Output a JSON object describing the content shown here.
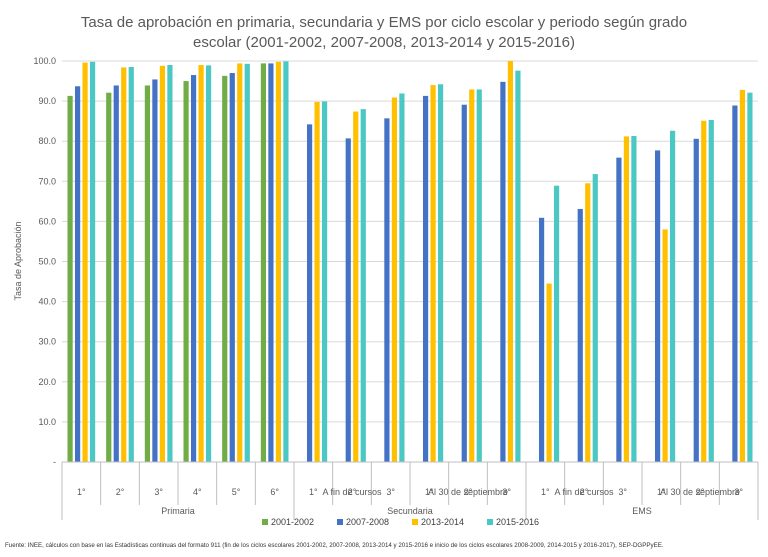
{
  "colors": {
    "series": [
      "#70AD47",
      "#4472C4",
      "#FFC000",
      "#4BC8C4"
    ],
    "grid": "#d9d9d9",
    "axis": "#bfbfbf",
    "text": "#595959"
  },
  "chart_data": {
    "type": "bar",
    "title_line1": "Tasa de aprobación en primaria, secundaria y EMS por ciclo escolar y periodo según grado",
    "title_line2": "escolar (2001-2002, 2007-2008, 2013-2014 y 2015-2016)",
    "ylabel": "Tasa de Aprobación",
    "ylim": [
      0,
      100
    ],
    "yticks": [
      "-",
      "10.0",
      "20.0",
      "30.0",
      "40.0",
      "50.0",
      "60.0",
      "70.0",
      "80.0",
      "90.0",
      "100.0"
    ],
    "grid": true,
    "legend_position": "bottom",
    "categories": [
      "1°",
      "2°",
      "3°",
      "4°",
      "5°",
      "6°",
      "1°",
      "2°",
      "3°",
      "1°",
      "2°",
      "3°",
      "1°",
      "2°",
      "3°",
      "1°",
      "2°",
      "3°"
    ],
    "subgroups": [
      "",
      "A fin de cursos",
      "Al 30 de septiembre",
      "A fin de cursos",
      "Al 30 de septiembre"
    ],
    "groups": [
      "Primaria",
      "Secundaria",
      "EMS"
    ],
    "series": [
      {
        "name": "2001-2002",
        "values": [
          91.3,
          92.1,
          93.9,
          95.0,
          96.3,
          99.4,
          null,
          null,
          null,
          null,
          null,
          null,
          null,
          null,
          null,
          null,
          null,
          null
        ]
      },
      {
        "name": "2007-2008",
        "values": [
          93.7,
          93.9,
          95.4,
          96.5,
          97.0,
          99.4,
          84.2,
          80.7,
          85.7,
          91.3,
          89.1,
          94.8,
          60.9,
          63.1,
          75.9,
          77.7,
          80.6,
          88.9
        ]
      },
      {
        "name": "2013-2014",
        "values": [
          99.6,
          98.4,
          98.8,
          99.0,
          99.4,
          99.8,
          89.8,
          87.4,
          90.9,
          94.0,
          92.9,
          100.0,
          44.5,
          69.5,
          81.2,
          58.0,
          85.1,
          92.8
        ]
      },
      {
        "name": "2015-2016",
        "values": [
          99.8,
          98.5,
          99.0,
          98.9,
          99.3,
          99.9,
          89.9,
          88.0,
          91.9,
          94.2,
          92.9,
          97.6,
          68.9,
          71.8,
          81.3,
          82.6,
          85.3,
          92.1
        ]
      }
    ]
  },
  "source": "Fuente: INEE, cálculos con base en las Estadísticas continuas del formato 911 (fin de los ciclos escolares 2001-2002, 2007-2008, 2013-2014 y 2015-2016 e inicio de los ciclos escolares 2008-2009, 2014-2015 y 2016-2017), SEP-DGPPyEE."
}
